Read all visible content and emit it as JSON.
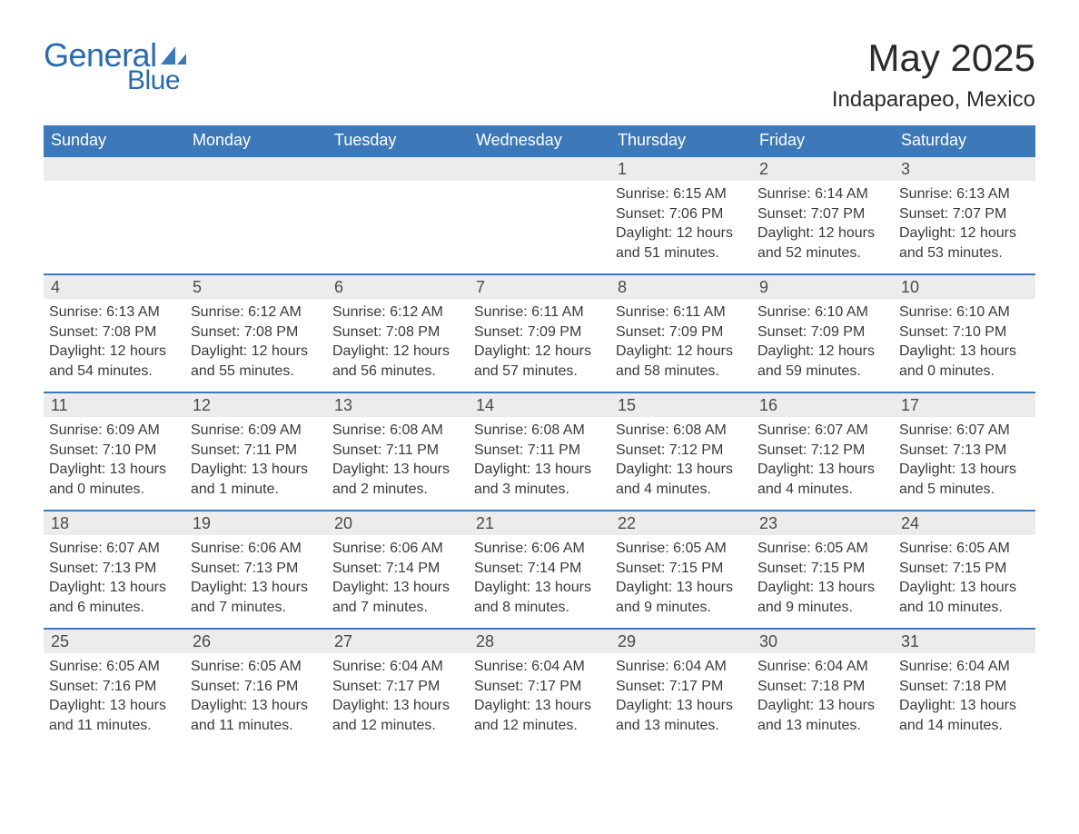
{
  "logo": {
    "word1": "General",
    "word2": "Blue",
    "brand_color": "#2a6aad",
    "shape_color": "#3d79b8"
  },
  "header": {
    "month_title": "May 2025",
    "location": "Indaparapeo, Mexico"
  },
  "style": {
    "header_bg": "#3d79b8",
    "header_text": "#ffffff",
    "row_border": "#3d79b8",
    "daynum_bg": "#ececec",
    "body_text": "#3a3a3a",
    "page_bg": "#ffffff",
    "title_fontsize": 42,
    "location_fontsize": 24,
    "dow_fontsize": 18,
    "body_fontsize": 16
  },
  "days_of_week": [
    "Sunday",
    "Monday",
    "Tuesday",
    "Wednesday",
    "Thursday",
    "Friday",
    "Saturday"
  ],
  "weeks": [
    [
      {
        "day": "",
        "sunrise": "",
        "sunset": "",
        "daylight": ""
      },
      {
        "day": "",
        "sunrise": "",
        "sunset": "",
        "daylight": ""
      },
      {
        "day": "",
        "sunrise": "",
        "sunset": "",
        "daylight": ""
      },
      {
        "day": "",
        "sunrise": "",
        "sunset": "",
        "daylight": ""
      },
      {
        "day": "1",
        "sunrise": "Sunrise: 6:15 AM",
        "sunset": "Sunset: 7:06 PM",
        "daylight": "Daylight: 12 hours and 51 minutes."
      },
      {
        "day": "2",
        "sunrise": "Sunrise: 6:14 AM",
        "sunset": "Sunset: 7:07 PM",
        "daylight": "Daylight: 12 hours and 52 minutes."
      },
      {
        "day": "3",
        "sunrise": "Sunrise: 6:13 AM",
        "sunset": "Sunset: 7:07 PM",
        "daylight": "Daylight: 12 hours and 53 minutes."
      }
    ],
    [
      {
        "day": "4",
        "sunrise": "Sunrise: 6:13 AM",
        "sunset": "Sunset: 7:08 PM",
        "daylight": "Daylight: 12 hours and 54 minutes."
      },
      {
        "day": "5",
        "sunrise": "Sunrise: 6:12 AM",
        "sunset": "Sunset: 7:08 PM",
        "daylight": "Daylight: 12 hours and 55 minutes."
      },
      {
        "day": "6",
        "sunrise": "Sunrise: 6:12 AM",
        "sunset": "Sunset: 7:08 PM",
        "daylight": "Daylight: 12 hours and 56 minutes."
      },
      {
        "day": "7",
        "sunrise": "Sunrise: 6:11 AM",
        "sunset": "Sunset: 7:09 PM",
        "daylight": "Daylight: 12 hours and 57 minutes."
      },
      {
        "day": "8",
        "sunrise": "Sunrise: 6:11 AM",
        "sunset": "Sunset: 7:09 PM",
        "daylight": "Daylight: 12 hours and 58 minutes."
      },
      {
        "day": "9",
        "sunrise": "Sunrise: 6:10 AM",
        "sunset": "Sunset: 7:09 PM",
        "daylight": "Daylight: 12 hours and 59 minutes."
      },
      {
        "day": "10",
        "sunrise": "Sunrise: 6:10 AM",
        "sunset": "Sunset: 7:10 PM",
        "daylight": "Daylight: 13 hours and 0 minutes."
      }
    ],
    [
      {
        "day": "11",
        "sunrise": "Sunrise: 6:09 AM",
        "sunset": "Sunset: 7:10 PM",
        "daylight": "Daylight: 13 hours and 0 minutes."
      },
      {
        "day": "12",
        "sunrise": "Sunrise: 6:09 AM",
        "sunset": "Sunset: 7:11 PM",
        "daylight": "Daylight: 13 hours and 1 minute."
      },
      {
        "day": "13",
        "sunrise": "Sunrise: 6:08 AM",
        "sunset": "Sunset: 7:11 PM",
        "daylight": "Daylight: 13 hours and 2 minutes."
      },
      {
        "day": "14",
        "sunrise": "Sunrise: 6:08 AM",
        "sunset": "Sunset: 7:11 PM",
        "daylight": "Daylight: 13 hours and 3 minutes."
      },
      {
        "day": "15",
        "sunrise": "Sunrise: 6:08 AM",
        "sunset": "Sunset: 7:12 PM",
        "daylight": "Daylight: 13 hours and 4 minutes."
      },
      {
        "day": "16",
        "sunrise": "Sunrise: 6:07 AM",
        "sunset": "Sunset: 7:12 PM",
        "daylight": "Daylight: 13 hours and 4 minutes."
      },
      {
        "day": "17",
        "sunrise": "Sunrise: 6:07 AM",
        "sunset": "Sunset: 7:13 PM",
        "daylight": "Daylight: 13 hours and 5 minutes."
      }
    ],
    [
      {
        "day": "18",
        "sunrise": "Sunrise: 6:07 AM",
        "sunset": "Sunset: 7:13 PM",
        "daylight": "Daylight: 13 hours and 6 minutes."
      },
      {
        "day": "19",
        "sunrise": "Sunrise: 6:06 AM",
        "sunset": "Sunset: 7:13 PM",
        "daylight": "Daylight: 13 hours and 7 minutes."
      },
      {
        "day": "20",
        "sunrise": "Sunrise: 6:06 AM",
        "sunset": "Sunset: 7:14 PM",
        "daylight": "Daylight: 13 hours and 7 minutes."
      },
      {
        "day": "21",
        "sunrise": "Sunrise: 6:06 AM",
        "sunset": "Sunset: 7:14 PM",
        "daylight": "Daylight: 13 hours and 8 minutes."
      },
      {
        "day": "22",
        "sunrise": "Sunrise: 6:05 AM",
        "sunset": "Sunset: 7:15 PM",
        "daylight": "Daylight: 13 hours and 9 minutes."
      },
      {
        "day": "23",
        "sunrise": "Sunrise: 6:05 AM",
        "sunset": "Sunset: 7:15 PM",
        "daylight": "Daylight: 13 hours and 9 minutes."
      },
      {
        "day": "24",
        "sunrise": "Sunrise: 6:05 AM",
        "sunset": "Sunset: 7:15 PM",
        "daylight": "Daylight: 13 hours and 10 minutes."
      }
    ],
    [
      {
        "day": "25",
        "sunrise": "Sunrise: 6:05 AM",
        "sunset": "Sunset: 7:16 PM",
        "daylight": "Daylight: 13 hours and 11 minutes."
      },
      {
        "day": "26",
        "sunrise": "Sunrise: 6:05 AM",
        "sunset": "Sunset: 7:16 PM",
        "daylight": "Daylight: 13 hours and 11 minutes."
      },
      {
        "day": "27",
        "sunrise": "Sunrise: 6:04 AM",
        "sunset": "Sunset: 7:17 PM",
        "daylight": "Daylight: 13 hours and 12 minutes."
      },
      {
        "day": "28",
        "sunrise": "Sunrise: 6:04 AM",
        "sunset": "Sunset: 7:17 PM",
        "daylight": "Daylight: 13 hours and 12 minutes."
      },
      {
        "day": "29",
        "sunrise": "Sunrise: 6:04 AM",
        "sunset": "Sunset: 7:17 PM",
        "daylight": "Daylight: 13 hours and 13 minutes."
      },
      {
        "day": "30",
        "sunrise": "Sunrise: 6:04 AM",
        "sunset": "Sunset: 7:18 PM",
        "daylight": "Daylight: 13 hours and 13 minutes."
      },
      {
        "day": "31",
        "sunrise": "Sunrise: 6:04 AM",
        "sunset": "Sunset: 7:18 PM",
        "daylight": "Daylight: 13 hours and 14 minutes."
      }
    ]
  ]
}
